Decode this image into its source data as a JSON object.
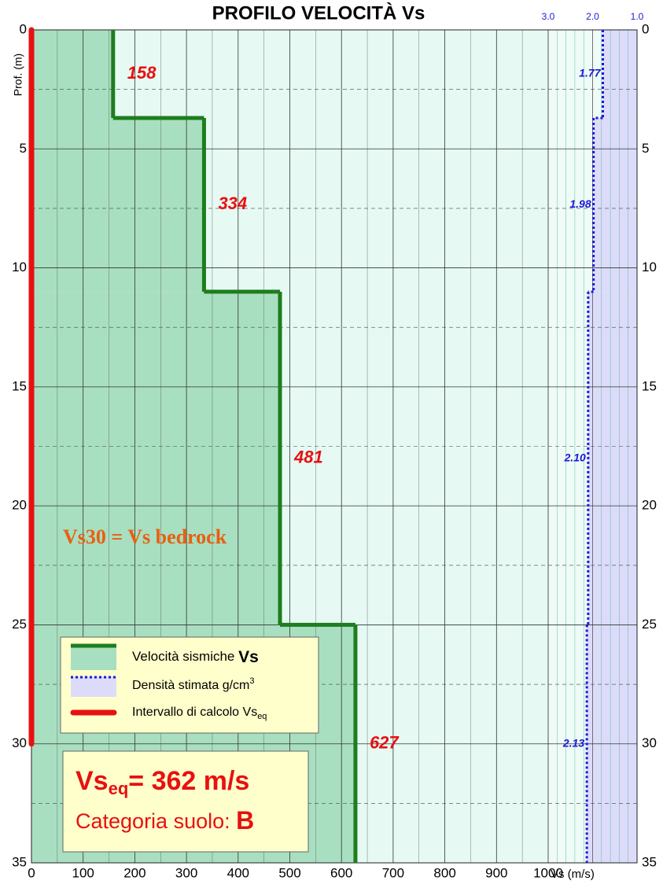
{
  "chart_data": {
    "type": "step",
    "title": "PROFILO VELOCITÀ Vs",
    "ylabel": "Prof. (m)",
    "xlabel": "Vs (m/s)",
    "layer_bounds": [
      0,
      3.7,
      11,
      25,
      35
    ],
    "series": [
      {
        "name": "Velocità sismiche ",
        "name_bold": "Vs",
        "color": "#1e7d1e",
        "fill": "#a8dfc0",
        "values": [
          158,
          334,
          481,
          627
        ]
      },
      {
        "name": "Densità stimata g/cm",
        "name_sup": "3",
        "color": "#1a1ad8",
        "fill": "#dcdcfa",
        "axis": "x2",
        "values": [
          1.77,
          1.98,
          2.1,
          2.13
        ],
        "value_labels": [
          "1.77",
          "1.98",
          "2.10",
          "2.13"
        ]
      }
    ],
    "interval": {
      "name": "Intervallo di calcolo Vs",
      "name_sub": "eq",
      "color": "#e81010",
      "range": [
        0,
        30
      ]
    },
    "annotation": "Vs30 = Vs bedrock",
    "result": {
      "name": "Vs",
      "sub": "eq",
      "text": "= 362 m/s",
      "category_label": "Categoria suolo: ",
      "category": "B"
    },
    "xlim": [
      0,
      1000
    ],
    "xticks": [
      0,
      100,
      200,
      300,
      400,
      500,
      600,
      700,
      800,
      900,
      1000
    ],
    "xminor": [
      50,
      150,
      250,
      350,
      450,
      550,
      650,
      750,
      850,
      950
    ],
    "x2lim": [
      3,
      1
    ],
    "x2ticks": [
      {
        "value": 3,
        "label": "3.0"
      },
      {
        "value": 2,
        "label": "2.0"
      },
      {
        "value": 1,
        "label": "1.0"
      }
    ],
    "x2minor": [
      2.8,
      2.6,
      2.4,
      2.2,
      1.8,
      1.6,
      1.4,
      1.2
    ],
    "ylim": [
      0,
      35
    ],
    "yticks": [
      0,
      5,
      10,
      15,
      20,
      25,
      30,
      35
    ],
    "yminor": [
      2.5,
      7.5,
      12.5,
      17.5,
      22.5,
      27.5,
      32.5
    ],
    "grid": true
  }
}
